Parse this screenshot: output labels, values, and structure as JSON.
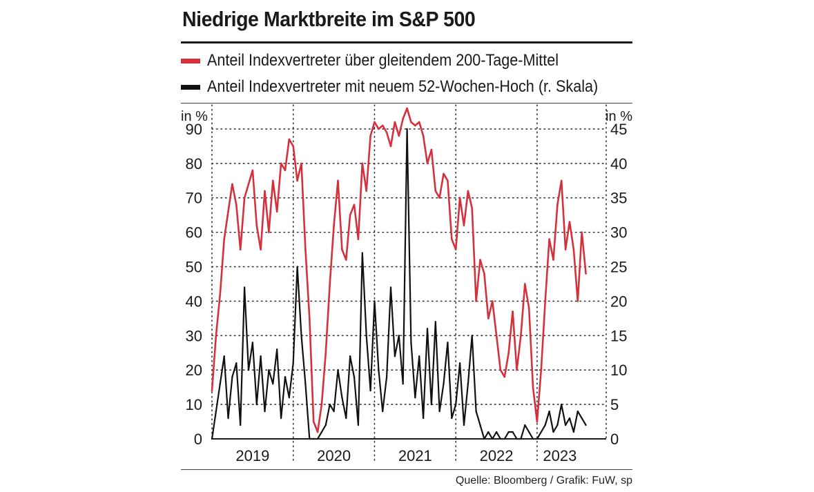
{
  "title": "Niedrige Marktbreite im S&P 500",
  "source": "Quelle: Bloomberg / Grafik: FuW, sp",
  "colors": {
    "red": "#d6303c",
    "black": "#111111",
    "grid": "#333333"
  },
  "chart_data": {
    "type": "line",
    "title": "Niedrige Marktbreite im S&P 500",
    "left_axis": {
      "label": "in %",
      "ticks": [
        0,
        10,
        20,
        30,
        40,
        50,
        60,
        70,
        80,
        90
      ],
      "range": [
        0,
        97
      ]
    },
    "right_axis": {
      "label": "in %",
      "ticks": [
        0,
        5,
        10,
        15,
        20,
        25,
        30,
        35,
        40,
        45
      ],
      "range": [
        0,
        48.5
      ]
    },
    "x_range": [
      2018.5,
      2023.35
    ],
    "x_ticks": [
      {
        "label": "2019",
        "pos": 2019.0
      },
      {
        "label": "2020",
        "pos": 2020.0
      },
      {
        "label": "2021",
        "pos": 2021.0
      },
      {
        "label": "2022",
        "pos": 2022.0
      },
      {
        "label": "2023",
        "pos": 2022.78
      }
    ],
    "year_dividers": [
      2019.5,
      2020.5,
      2021.5,
      2022.5
    ],
    "series": [
      {
        "name": "Anteil Indexvertreter über gleitendem 200-Tage-Mittel",
        "axis": "left",
        "color": "#d6303c",
        "x": [
          2018.5,
          2018.55,
          2018.6,
          2018.65,
          2018.7,
          2018.75,
          2018.8,
          2018.85,
          2018.9,
          2018.95,
          2019.0,
          2019.05,
          2019.1,
          2019.15,
          2019.2,
          2019.25,
          2019.3,
          2019.35,
          2019.4,
          2019.45,
          2019.5,
          2019.55,
          2019.6,
          2019.65,
          2019.7,
          2019.75,
          2019.8,
          2019.85,
          2019.9,
          2019.95,
          2020.0,
          2020.05,
          2020.1,
          2020.15,
          2020.2,
          2020.25,
          2020.3,
          2020.35,
          2020.4,
          2020.45,
          2020.5,
          2020.55,
          2020.6,
          2020.65,
          2020.7,
          2020.75,
          2020.8,
          2020.85,
          2020.9,
          2020.95,
          2021.0,
          2021.05,
          2021.1,
          2021.15,
          2021.2,
          2021.25,
          2021.3,
          2021.35,
          2021.4,
          2021.45,
          2021.5,
          2021.55,
          2021.6,
          2021.65,
          2021.7,
          2021.75,
          2021.8,
          2021.85,
          2021.9,
          2021.95,
          2022.0,
          2022.05,
          2022.1,
          2022.15,
          2022.2,
          2022.25,
          2022.3,
          2022.35,
          2022.4,
          2022.45,
          2022.5,
          2022.55,
          2022.6,
          2022.65,
          2022.7,
          2022.75,
          2022.8,
          2022.85,
          2022.9,
          2022.95,
          2023.0,
          2023.05,
          2023.1
        ],
        "y": [
          14,
          30,
          42,
          58,
          66,
          74,
          68,
          55,
          70,
          74,
          78,
          62,
          55,
          72,
          60,
          75,
          66,
          80,
          78,
          87,
          85,
          75,
          80,
          55,
          35,
          5,
          2,
          10,
          25,
          45,
          62,
          75,
          55,
          52,
          65,
          68,
          58,
          80,
          72,
          88,
          92,
          90,
          91,
          89,
          85,
          92,
          88,
          93,
          96,
          92,
          91,
          92,
          88,
          80,
          84,
          72,
          70,
          77,
          75,
          58,
          55,
          70,
          62,
          72,
          67,
          40,
          52,
          48,
          35,
          40,
          30,
          20,
          18,
          25,
          37,
          20,
          30,
          45,
          38,
          15,
          5,
          20,
          40,
          58,
          52,
          68,
          75,
          55,
          63,
          55,
          40,
          60,
          48
        ],
        "y_unit": "%"
      },
      {
        "name": "Anteil Indexvertreter mit neuem 52-Wochen-Hoch (r. Skala)",
        "axis": "right",
        "color": "#111111",
        "x": [
          2018.5,
          2018.55,
          2018.6,
          2018.65,
          2018.7,
          2018.75,
          2018.8,
          2018.85,
          2018.9,
          2018.95,
          2019.0,
          2019.05,
          2019.1,
          2019.15,
          2019.2,
          2019.25,
          2019.3,
          2019.35,
          2019.4,
          2019.45,
          2019.5,
          2019.55,
          2019.6,
          2019.65,
          2019.7,
          2019.75,
          2019.8,
          2019.85,
          2019.9,
          2019.95,
          2020.0,
          2020.05,
          2020.1,
          2020.15,
          2020.2,
          2020.25,
          2020.3,
          2020.35,
          2020.4,
          2020.45,
          2020.5,
          2020.55,
          2020.6,
          2020.65,
          2020.7,
          2020.75,
          2020.8,
          2020.85,
          2020.9,
          2020.95,
          2021.0,
          2021.05,
          2021.1,
          2021.15,
          2021.2,
          2021.25,
          2021.3,
          2021.35,
          2021.4,
          2021.45,
          2021.5,
          2021.55,
          2021.6,
          2021.65,
          2021.7,
          2021.75,
          2021.8,
          2021.85,
          2021.9,
          2021.95,
          2022.0,
          2022.05,
          2022.1,
          2022.15,
          2022.2,
          2022.25,
          2022.3,
          2022.35,
          2022.4,
          2022.45,
          2022.5,
          2022.55,
          2022.6,
          2022.65,
          2022.7,
          2022.75,
          2022.8,
          2022.85,
          2022.9,
          2022.95,
          2023.0,
          2023.05,
          2023.1
        ],
        "y": [
          0,
          4,
          8,
          12,
          3,
          9,
          11,
          2,
          22,
          10,
          14,
          5,
          12,
          4,
          10,
          8,
          13,
          3,
          9,
          6,
          11,
          25,
          15,
          8,
          0,
          0,
          0,
          1,
          2,
          5,
          4,
          10,
          6,
          3,
          12,
          9,
          2,
          27,
          15,
          7,
          20,
          10,
          4,
          9,
          22,
          12,
          15,
          8,
          45,
          14,
          6,
          12,
          3,
          16,
          5,
          17,
          4,
          8,
          14,
          3,
          5,
          11,
          2,
          8,
          15,
          4,
          2,
          0,
          1,
          0,
          1,
          0,
          0,
          1,
          1,
          0,
          0,
          2,
          1,
          0,
          0,
          1,
          2,
          4,
          1,
          2,
          5,
          2,
          3,
          1,
          4,
          3,
          2
        ],
        "y_unit": "%"
      }
    ]
  }
}
